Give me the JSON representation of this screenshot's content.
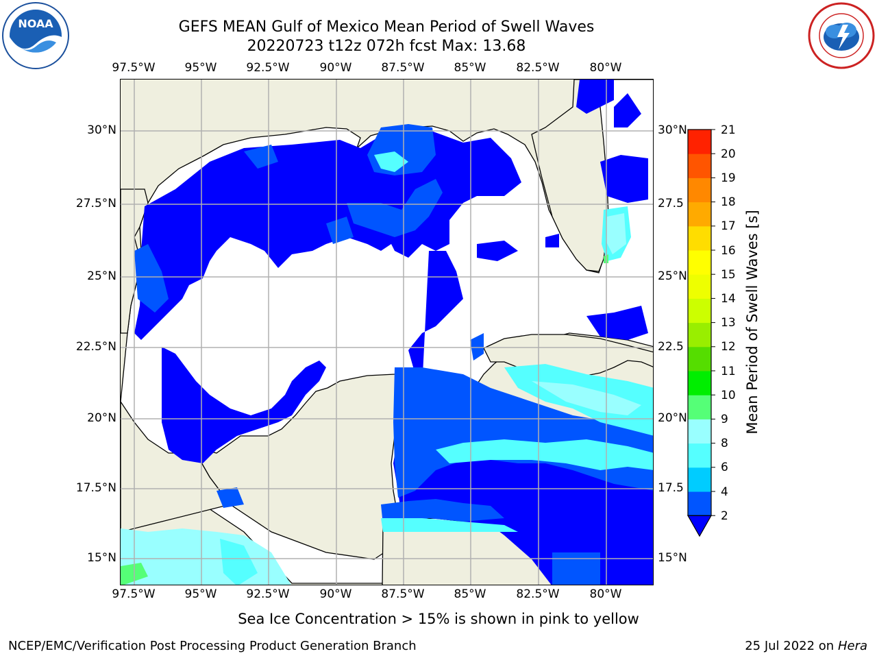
{
  "header": {
    "title_line1": "GEFS MEAN Gulf of Mexico Mean Period of Swell Waves",
    "title_line2": "20220723 t12z 072h fcst   Max: 13.68"
  },
  "logos": {
    "left": {
      "name": "noaa-logo",
      "text": "NOAA"
    },
    "right": {
      "name": "nws-logo"
    }
  },
  "map": {
    "lon_ticks": [
      "97.5°W",
      "95°W",
      "92.5°W",
      "90°W",
      "87.5°W",
      "85°W",
      "82.5°W",
      "80°W"
    ],
    "lat_ticks_left": [
      "30°N",
      "27.5°N",
      "25°N",
      "22.5°N",
      "20°N",
      "17.5°N",
      "15°N"
    ],
    "lat_ticks_right": [
      "30°N",
      "27.5",
      "25°N",
      "22.5",
      "20°N",
      "17.5",
      "15°N"
    ],
    "colors": {
      "land": "#efefdf",
      "ocean_clear": "#ffffff",
      "grid": "#b0b0b0"
    }
  },
  "colorbar": {
    "label": "Mean Period of Swell Waves [s]",
    "levels": [
      "2",
      "4",
      "6",
      "8",
      "9",
      "10",
      "11",
      "12",
      "13",
      "14",
      "15",
      "16",
      "17",
      "18",
      "19",
      "20",
      "21"
    ],
    "colors": [
      "#0055ff",
      "#00ccff",
      "#55ffff",
      "#99ffff",
      "#55ff77",
      "#00ee00",
      "#55dd00",
      "#99ee00",
      "#ccff00",
      "#eeff00",
      "#ffff00",
      "#ffdd00",
      "#ffaa00",
      "#ff8800",
      "#ff5500",
      "#ff2200"
    ],
    "extend_color": "#0000ff"
  },
  "notes": {
    "sea_ice": "Sea Ice Concentration > 15% is shown in pink to yellow"
  },
  "footer": {
    "left": "NCEP/EMC/Verification Post Processing Product Generation Branch",
    "right_date": "25 Jul 2022 on ",
    "right_host": "Hera"
  }
}
